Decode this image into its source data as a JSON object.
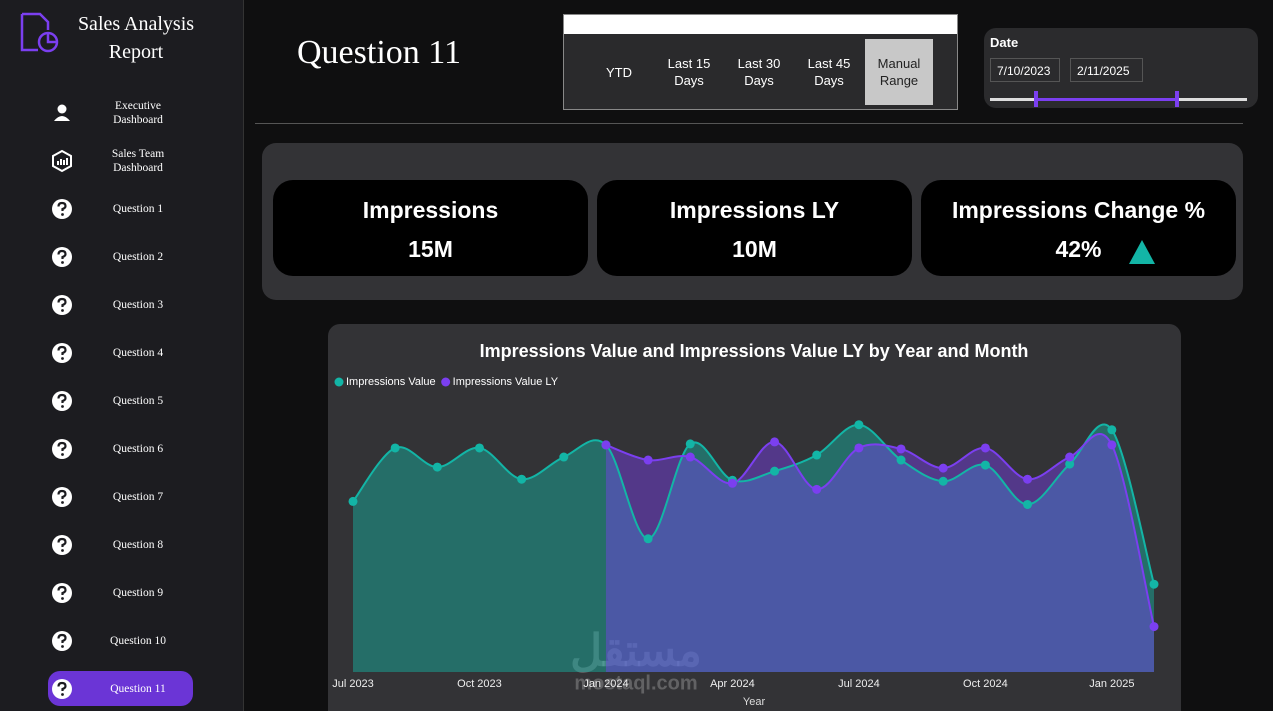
{
  "sidebar": {
    "title": "Sales Analysis Report",
    "nav": [
      "Executive Dashboard",
      "Sales Team Dashboard",
      "Question 1",
      "Question 2",
      "Question 3",
      "Question 4",
      "Question 5",
      "Question 6",
      "Question 7",
      "Question 8",
      "Question 9",
      "Question 10",
      "Question 11"
    ],
    "active": 12
  },
  "header": {
    "title": "Question 11"
  },
  "period_slicer": {
    "options": [
      "YTD",
      "Last 15 Days",
      "Last 30 Days",
      "Last 45 Days",
      "Manual Range"
    ],
    "selected": 4
  },
  "date_slicer": {
    "label": "Date",
    "start": "7/10/2023",
    "end": "2/11/2025"
  },
  "kpis": [
    {
      "label": "Impressions",
      "value": "15M"
    },
    {
      "label": "Impressions LY",
      "value": "10M"
    },
    {
      "label": "Impressions Change %",
      "value": "42%"
    }
  ],
  "chart_data": {
    "type": "area",
    "title": "Impressions Value and Impressions Value LY by Year and Month",
    "x_label": "Year",
    "categories": [
      "Jul 2023",
      null,
      null,
      "Oct 2023",
      null,
      null,
      "Jan 2024",
      null,
      null,
      "Apr 2024",
      null,
      null,
      "Jul 2024",
      null,
      null,
      "Oct 2024",
      null,
      null,
      "Jan 2025",
      null
    ],
    "series": [
      {
        "name": "Impressions Value",
        "color": "#13b5a6",
        "values": [
          676,
          888,
          812,
          888,
          764,
          852,
          900,
          528,
          904,
          760,
          796,
          860,
          980,
          840,
          756,
          820,
          664,
          824,
          960,
          348
        ]
      },
      {
        "name": "Impressions Value LY",
        "color": "#7b3ff0",
        "values": [
          null,
          null,
          null,
          null,
          null,
          null,
          900,
          840,
          852,
          748,
          912,
          724,
          888,
          884,
          808,
          888,
          764,
          852,
          900,
          180
        ]
      }
    ]
  },
  "watermark": {
    "arabic": "مستقل",
    "latin": "mostaql.com"
  }
}
